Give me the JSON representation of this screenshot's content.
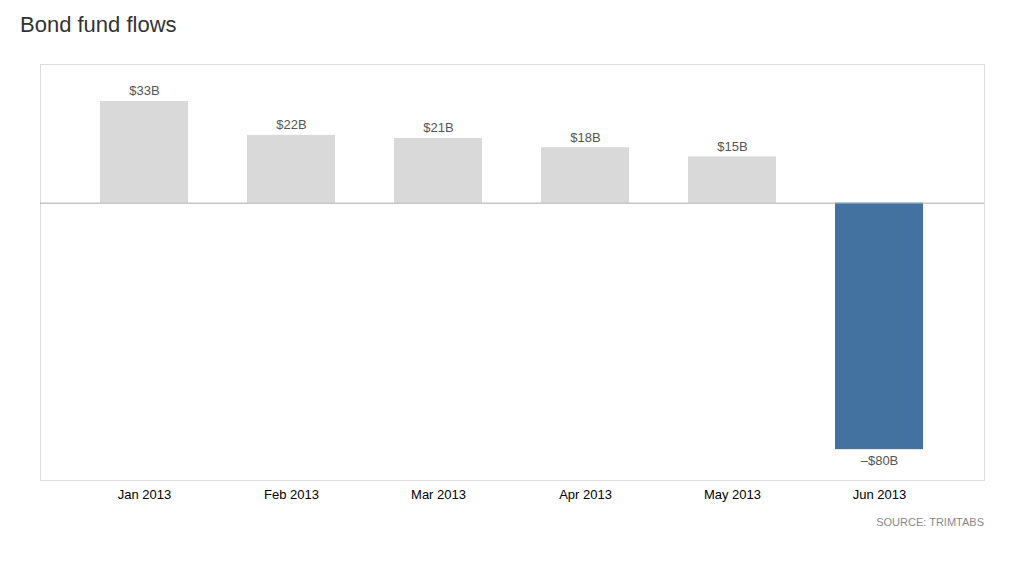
{
  "chart_data": {
    "type": "bar",
    "title": "Bond fund flows",
    "categories": [
      "Jan 2013",
      "Feb 2013",
      "Mar 2013",
      "Apr 2013",
      "May 2013",
      "Jun 2013"
    ],
    "values": [
      33,
      22,
      21,
      18,
      15,
      -80
    ],
    "value_labels": [
      "$33B",
      "$22B",
      "$21B",
      "$18B",
      "$15B",
      "–$80B"
    ],
    "colors": [
      "#d9d9d9",
      "#d9d9d9",
      "#d9d9d9",
      "#d9d9d9",
      "#d9d9d9",
      "#4472a0"
    ],
    "ylim": [
      -90,
      45
    ],
    "grid": false,
    "data_labels": true,
    "tick_labels": "x",
    "annotations": [
      "SOURCE: TRIMTABS"
    ]
  }
}
